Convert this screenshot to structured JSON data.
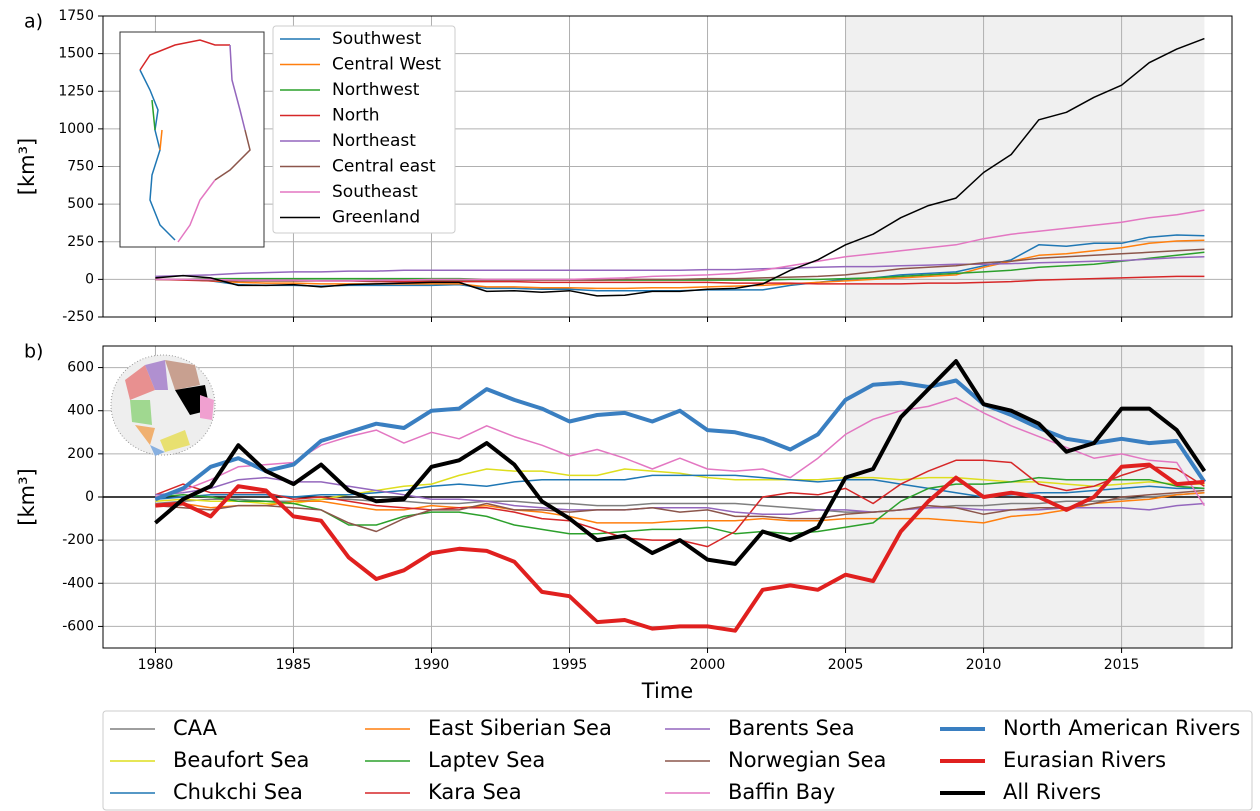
{
  "chart_data": [
    {
      "type": "line",
      "label": "a)",
      "y_label": "[km³]",
      "xlim": [
        1978.1,
        2019.0
      ],
      "ylim": [
        -250,
        1750
      ],
      "xticks": [
        1980,
        1985,
        1990,
        1995,
        2000,
        2005,
        2010,
        2015
      ],
      "xtick_labels": false,
      "yticks": [
        -250,
        0,
        250,
        500,
        750,
        1000,
        1250,
        1500,
        1750
      ],
      "grid": true,
      "shade": [
        2005,
        2018
      ],
      "legend": "upper left",
      "x": [
        1980,
        1981,
        1982,
        1983,
        1984,
        1985,
        1986,
        1987,
        1988,
        1989,
        1990,
        1991,
        1992,
        1993,
        1994,
        1995,
        1996,
        1997,
        1998,
        1999,
        2000,
        2001,
        2002,
        2003,
        2004,
        2005,
        2006,
        2007,
        2008,
        2009,
        2010,
        2011,
        2012,
        2013,
        2014,
        2015,
        2016,
        2017,
        2018
      ],
      "series": [
        {
          "name": "Southwest",
          "color": "#1f77b4",
          "width": 1.5,
          "values": [
            0,
            0,
            -10,
            -35,
            -40,
            -40,
            -45,
            -40,
            -40,
            -40,
            -40,
            -35,
            -60,
            -60,
            -65,
            -65,
            -75,
            -75,
            -75,
            -75,
            -70,
            -70,
            -70,
            -40,
            -20,
            0,
            10,
            30,
            40,
            50,
            90,
            130,
            230,
            220,
            240,
            240,
            280,
            295,
            290
          ]
        },
        {
          "name": "Central West",
          "color": "#ff7f0e",
          "width": 1.5,
          "values": [
            0,
            0,
            -10,
            -20,
            -25,
            -25,
            -30,
            -30,
            -30,
            -30,
            -30,
            -30,
            -50,
            -50,
            -55,
            -55,
            -60,
            -60,
            -55,
            -55,
            -50,
            -45,
            -40,
            -30,
            -20,
            -10,
            0,
            10,
            20,
            30,
            80,
            120,
            160,
            170,
            190,
            210,
            240,
            255,
            260
          ]
        },
        {
          "name": "Northwest",
          "color": "#2ca02c",
          "width": 1.5,
          "values": [
            0,
            0,
            5,
            5,
            5,
            5,
            5,
            5,
            5,
            5,
            5,
            5,
            0,
            0,
            0,
            0,
            -5,
            -5,
            -5,
            -5,
            -5,
            -5,
            -5,
            0,
            0,
            5,
            10,
            20,
            30,
            40,
            50,
            60,
            80,
            90,
            100,
            120,
            140,
            160,
            180
          ]
        },
        {
          "name": "North",
          "color": "#d62728",
          "width": 1.5,
          "values": [
            0,
            -5,
            -10,
            -10,
            -10,
            -10,
            -10,
            -10,
            -15,
            -15,
            -15,
            -15,
            -15,
            -15,
            -20,
            -20,
            -20,
            -20,
            -20,
            -20,
            -20,
            -25,
            -25,
            -25,
            -30,
            -30,
            -30,
            -30,
            -25,
            -25,
            -20,
            -15,
            -5,
            0,
            5,
            10,
            15,
            20,
            20
          ]
        },
        {
          "name": "Northeast",
          "color": "#9467bd",
          "width": 1.5,
          "values": [
            20,
            25,
            30,
            40,
            45,
            50,
            50,
            55,
            55,
            60,
            60,
            60,
            60,
            60,
            60,
            60,
            60,
            60,
            60,
            60,
            65,
            65,
            70,
            75,
            80,
            85,
            85,
            90,
            95,
            100,
            100,
            105,
            110,
            115,
            120,
            125,
            135,
            145,
            150
          ]
        },
        {
          "name": "Central east",
          "color": "#8c564b",
          "width": 1.5,
          "values": [
            0,
            0,
            -5,
            -10,
            -10,
            -10,
            -10,
            -10,
            -10,
            -5,
            -5,
            -5,
            -5,
            -5,
            -5,
            -5,
            -5,
            0,
            0,
            0,
            5,
            5,
            10,
            15,
            20,
            30,
            50,
            70,
            80,
            90,
            110,
            120,
            140,
            150,
            160,
            170,
            180,
            190,
            200
          ]
        },
        {
          "name": "Southeast",
          "color": "#e377c2",
          "width": 1.5,
          "values": [
            0,
            0,
            0,
            -5,
            -5,
            -5,
            -10,
            -10,
            -5,
            -5,
            0,
            0,
            0,
            0,
            0,
            0,
            5,
            10,
            20,
            25,
            30,
            40,
            60,
            90,
            120,
            150,
            170,
            190,
            210,
            230,
            270,
            300,
            320,
            340,
            360,
            380,
            410,
            430,
            460
          ]
        },
        {
          "name": "Greenland",
          "color": "#000000",
          "width": 1.5,
          "values": [
            10,
            25,
            10,
            -40,
            -40,
            -35,
            -50,
            -35,
            -30,
            -25,
            -20,
            -20,
            -80,
            -75,
            -85,
            -75,
            -110,
            -105,
            -80,
            -80,
            -65,
            -60,
            -30,
            60,
            130,
            230,
            300,
            410,
            490,
            540,
            710,
            830,
            1060,
            1110,
            1210,
            1290,
            1440,
            1530,
            1600
          ]
        }
      ]
    },
    {
      "type": "line",
      "label": "b)",
      "y_label": "[km³]",
      "x_label": "Time",
      "xlim": [
        1978.1,
        2019.0
      ],
      "ylim": [
        -700,
        700
      ],
      "xticks": [
        1980,
        1985,
        1990,
        1995,
        2000,
        2005,
        2010,
        2015
      ],
      "xtick_labels": true,
      "yticks": [
        -600,
        -400,
        -200,
        0,
        200,
        400,
        600
      ],
      "grid": true,
      "zero_line": true,
      "shade": [
        2005,
        2018
      ],
      "legend": "below",
      "x": [
        1980,
        1981,
        1982,
        1983,
        1984,
        1985,
        1986,
        1987,
        1988,
        1989,
        1990,
        1991,
        1992,
        1993,
        1994,
        1995,
        1996,
        1997,
        1998,
        1999,
        2000,
        2001,
        2002,
        2003,
        2004,
        2005,
        2006,
        2007,
        2008,
        2009,
        2010,
        2011,
        2012,
        2013,
        2014,
        2015,
        2016,
        2017,
        2018
      ],
      "series": [
        {
          "name": "CAA",
          "color": "#7f7f7f",
          "width": 1.5,
          "values": [
            -30,
            -20,
            -10,
            -10,
            -20,
            -20,
            -10,
            -10,
            -20,
            -20,
            -30,
            -30,
            -20,
            -20,
            -30,
            -30,
            -40,
            -40,
            -30,
            -30,
            -30,
            -30,
            -40,
            -50,
            -60,
            -70,
            -70,
            -60,
            -50,
            -40,
            -40,
            -30,
            -30,
            -20,
            -20,
            -10,
            0,
            10,
            20
          ]
        },
        {
          "name": "Beaufort Sea",
          "color": "#dede1e",
          "width": 1.5,
          "values": [
            -20,
            -10,
            -20,
            -20,
            -30,
            -30,
            -10,
            10,
            30,
            50,
            60,
            100,
            130,
            120,
            120,
            100,
            100,
            130,
            120,
            110,
            90,
            80,
            80,
            80,
            80,
            90,
            90,
            80,
            90,
            90,
            80,
            70,
            70,
            60,
            50,
            60,
            70,
            60,
            60
          ]
        },
        {
          "name": "Chukchi Sea",
          "color": "#1f77b4",
          "width": 1.5,
          "values": [
            -10,
            0,
            10,
            10,
            10,
            0,
            10,
            10,
            20,
            30,
            50,
            60,
            50,
            70,
            80,
            80,
            80,
            80,
            100,
            100,
            100,
            100,
            90,
            80,
            70,
            80,
            80,
            60,
            40,
            20,
            0,
            10,
            20,
            20,
            30,
            40,
            50,
            40,
            40
          ]
        },
        {
          "name": "East Siberian Sea",
          "color": "#ff7f0e",
          "width": 1.5,
          "values": [
            -40,
            -30,
            -50,
            -40,
            -40,
            -20,
            -20,
            -40,
            -60,
            -60,
            -40,
            -50,
            -40,
            -60,
            -70,
            -90,
            -120,
            -120,
            -120,
            -110,
            -110,
            -110,
            -100,
            -110,
            -110,
            -100,
            -100,
            -100,
            -100,
            -110,
            -120,
            -90,
            -80,
            -60,
            -30,
            -20,
            -10,
            10,
            20
          ]
        },
        {
          "name": "Laptev Sea",
          "color": "#2ca02c",
          "width": 1.5,
          "values": [
            0,
            10,
            0,
            -20,
            -20,
            -30,
            -60,
            -130,
            -130,
            -90,
            -70,
            -70,
            -90,
            -130,
            -150,
            -170,
            -170,
            -160,
            -150,
            -150,
            -140,
            -170,
            -160,
            -170,
            -160,
            -140,
            -120,
            -20,
            40,
            60,
            60,
            70,
            90,
            80,
            80,
            80,
            80,
            50,
            40
          ]
        },
        {
          "name": "Kara Sea",
          "color": "#d62728",
          "width": 1.5,
          "values": [
            10,
            60,
            20,
            20,
            20,
            -10,
            0,
            -20,
            -40,
            -50,
            -60,
            -50,
            -50,
            -70,
            -100,
            -110,
            -150,
            -190,
            -200,
            -200,
            -230,
            -160,
            0,
            20,
            10,
            40,
            -30,
            60,
            120,
            170,
            170,
            160,
            60,
            30,
            50,
            100,
            140,
            130,
            50
          ]
        },
        {
          "name": "Barents Sea",
          "color": "#9467bd",
          "width": 1.5,
          "values": [
            10,
            20,
            40,
            80,
            90,
            70,
            70,
            50,
            30,
            10,
            -10,
            -10,
            -20,
            -40,
            -50,
            -60,
            -60,
            -60,
            -50,
            -50,
            -50,
            -70,
            -80,
            -80,
            -60,
            -60,
            -70,
            -60,
            -50,
            -50,
            -60,
            -60,
            -60,
            -50,
            -50,
            -50,
            -60,
            -40,
            -30
          ]
        },
        {
          "name": "Norwegian Sea",
          "color": "#8c564b",
          "width": 1.5,
          "values": [
            -40,
            -50,
            -60,
            -40,
            -40,
            -50,
            -60,
            -120,
            -160,
            -100,
            -60,
            -60,
            -30,
            -60,
            -60,
            -70,
            -60,
            -60,
            -50,
            -70,
            -60,
            -90,
            -90,
            -100,
            -100,
            -80,
            -70,
            -60,
            -40,
            -50,
            -80,
            -60,
            -50,
            -50,
            -30,
            0,
            10,
            20,
            30
          ]
        },
        {
          "name": "Baffin Bay",
          "color": "#e377c2",
          "width": 1.5,
          "values": [
            0,
            30,
            80,
            140,
            150,
            160,
            240,
            280,
            310,
            250,
            300,
            270,
            330,
            280,
            240,
            190,
            220,
            180,
            130,
            180,
            130,
            120,
            130,
            90,
            180,
            290,
            360,
            400,
            420,
            460,
            390,
            330,
            280,
            230,
            180,
            200,
            170,
            160,
            -40
          ]
        },
        {
          "name": "North American Rivers",
          "color": "#3a7fc1",
          "width": 4,
          "values": [
            -10,
            40,
            140,
            180,
            120,
            150,
            260,
            300,
            340,
            320,
            400,
            410,
            500,
            450,
            410,
            350,
            380,
            390,
            350,
            400,
            310,
            300,
            270,
            220,
            290,
            450,
            520,
            530,
            510,
            540,
            430,
            380,
            320,
            270,
            250,
            270,
            250,
            260,
            70
          ]
        },
        {
          "name": "Eurasian Rivers",
          "color": "#e0201f",
          "width": 4,
          "values": [
            -40,
            -30,
            -90,
            50,
            30,
            -90,
            -110,
            -280,
            -380,
            -340,
            -260,
            -240,
            -250,
            -300,
            -440,
            -460,
            -580,
            -570,
            -610,
            -600,
            -600,
            -620,
            -430,
            -410,
            -430,
            -360,
            -390,
            -160,
            -20,
            90,
            0,
            20,
            0,
            -60,
            0,
            140,
            150,
            60,
            70
          ]
        },
        {
          "name": "All Rivers",
          "color": "#000000",
          "width": 4,
          "values": [
            -120,
            -10,
            50,
            240,
            120,
            60,
            150,
            30,
            -20,
            -10,
            140,
            170,
            250,
            150,
            -20,
            -100,
            -200,
            -180,
            -260,
            -200,
            -290,
            -310,
            -160,
            -200,
            -140,
            90,
            130,
            370,
            500,
            630,
            430,
            400,
            340,
            210,
            250,
            410,
            410,
            310,
            120
          ]
        }
      ]
    }
  ]
}
